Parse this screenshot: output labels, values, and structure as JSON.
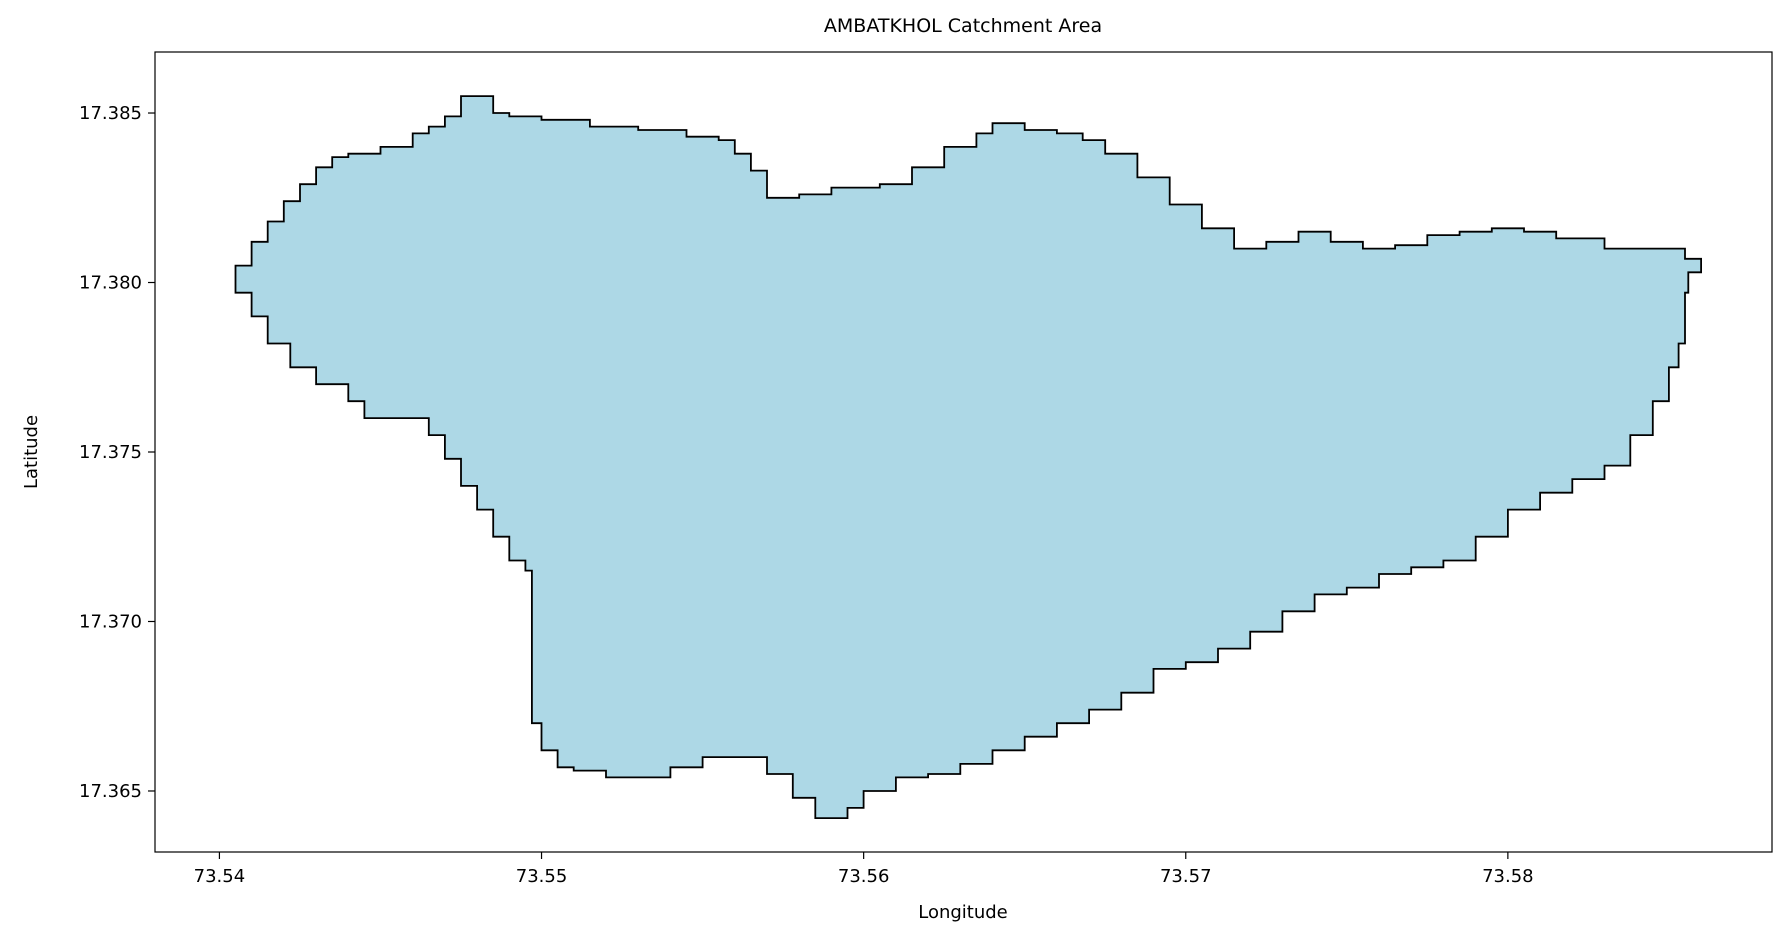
{
  "chart_data": {
    "type": "map",
    "title": "AMBATKHOL Catchment Area",
    "xlabel": "Longitude",
    "ylabel": "Latitude",
    "xlim": [
      73.538,
      73.5882
    ],
    "ylim": [
      17.3632,
      17.3868
    ],
    "xticks": [
      73.54,
      73.55,
      73.56,
      73.57,
      73.58
    ],
    "xtick_labels": [
      "73.54",
      "73.55",
      "73.56",
      "73.57",
      "73.58"
    ],
    "yticks": [
      17.365,
      17.37,
      17.375,
      17.38,
      17.385
    ],
    "ytick_labels": [
      "17.365",
      "17.370",
      "17.375",
      "17.380",
      "17.385"
    ],
    "grid": false,
    "fill_color": "#add8e6",
    "edge_color": "#000000",
    "polygon": [
      [
        73.5405,
        17.3805
      ],
      [
        73.541,
        17.3812
      ],
      [
        73.5415,
        17.3818
      ],
      [
        73.542,
        17.3824
      ],
      [
        73.5425,
        17.3829
      ],
      [
        73.543,
        17.3834
      ],
      [
        73.5435,
        17.3837
      ],
      [
        73.544,
        17.3838
      ],
      [
        73.545,
        17.384
      ],
      [
        73.546,
        17.3844
      ],
      [
        73.5465,
        17.3846
      ],
      [
        73.547,
        17.3849
      ],
      [
        73.5475,
        17.3855
      ],
      [
        73.548,
        17.3855
      ],
      [
        73.5485,
        17.385
      ],
      [
        73.549,
        17.3849
      ],
      [
        73.55,
        17.3848
      ],
      [
        73.5515,
        17.3846
      ],
      [
        73.553,
        17.3845
      ],
      [
        73.5545,
        17.3843
      ],
      [
        73.5555,
        17.3842
      ],
      [
        73.556,
        17.3838
      ],
      [
        73.5565,
        17.3833
      ],
      [
        73.557,
        17.3825
      ],
      [
        73.558,
        17.3826
      ],
      [
        73.559,
        17.3828
      ],
      [
        73.5605,
        17.3829
      ],
      [
        73.5615,
        17.3834
      ],
      [
        73.5625,
        17.384
      ],
      [
        73.5635,
        17.3844
      ],
      [
        73.564,
        17.3847
      ],
      [
        73.565,
        17.3845
      ],
      [
        73.566,
        17.3844
      ],
      [
        73.5668,
        17.3842
      ],
      [
        73.5675,
        17.3838
      ],
      [
        73.5685,
        17.3831
      ],
      [
        73.5695,
        17.3823
      ],
      [
        73.5705,
        17.3816
      ],
      [
        73.5715,
        17.381
      ],
      [
        73.5725,
        17.3812
      ],
      [
        73.5735,
        17.3815
      ],
      [
        73.5745,
        17.3812
      ],
      [
        73.5755,
        17.381
      ],
      [
        73.5765,
        17.3811
      ],
      [
        73.5775,
        17.3814
      ],
      [
        73.5785,
        17.3815
      ],
      [
        73.5795,
        17.3816
      ],
      [
        73.5805,
        17.3815
      ],
      [
        73.5815,
        17.3813
      ],
      [
        73.583,
        17.381
      ],
      [
        73.5845,
        17.381
      ],
      [
        73.5855,
        17.3807
      ],
      [
        73.586,
        17.3803
      ],
      [
        73.5856,
        17.3797
      ],
      [
        73.5855,
        17.3782
      ],
      [
        73.5853,
        17.3775
      ],
      [
        73.585,
        17.3765
      ],
      [
        73.5845,
        17.3755
      ],
      [
        73.5838,
        17.3746
      ],
      [
        73.583,
        17.3742
      ],
      [
        73.582,
        17.3738
      ],
      [
        73.581,
        17.3733
      ],
      [
        73.58,
        17.3725
      ],
      [
        73.579,
        17.3718
      ],
      [
        73.578,
        17.3716
      ],
      [
        73.577,
        17.3714
      ],
      [
        73.576,
        17.371
      ],
      [
        73.575,
        17.3708
      ],
      [
        73.574,
        17.3703
      ],
      [
        73.573,
        17.3697
      ],
      [
        73.572,
        17.3692
      ],
      [
        73.571,
        17.3688
      ],
      [
        73.57,
        17.3686
      ],
      [
        73.569,
        17.3679
      ],
      [
        73.568,
        17.3674
      ],
      [
        73.567,
        17.367
      ],
      [
        73.566,
        17.3666
      ],
      [
        73.565,
        17.3662
      ],
      [
        73.564,
        17.3658
      ],
      [
        73.563,
        17.3655
      ],
      [
        73.562,
        17.3654
      ],
      [
        73.561,
        17.365
      ],
      [
        73.56,
        17.3645
      ],
      [
        73.5595,
        17.3642
      ],
      [
        73.5585,
        17.3648
      ],
      [
        73.5578,
        17.3655
      ],
      [
        73.557,
        17.366
      ],
      [
        73.556,
        17.366
      ],
      [
        73.555,
        17.3657
      ],
      [
        73.554,
        17.3654
      ],
      [
        73.553,
        17.3654
      ],
      [
        73.552,
        17.3656
      ],
      [
        73.551,
        17.3657
      ],
      [
        73.5505,
        17.3662
      ],
      [
        73.55,
        17.367
      ],
      [
        73.5497,
        17.3675
      ],
      [
        73.5497,
        17.3705
      ],
      [
        73.5497,
        17.3715
      ],
      [
        73.5495,
        17.3718
      ],
      [
        73.549,
        17.3725
      ],
      [
        73.5485,
        17.3733
      ],
      [
        73.548,
        17.374
      ],
      [
        73.5475,
        17.3748
      ],
      [
        73.547,
        17.3755
      ],
      [
        73.5465,
        17.376
      ],
      [
        73.5455,
        17.376
      ],
      [
        73.5445,
        17.3765
      ],
      [
        73.544,
        17.377
      ],
      [
        73.543,
        17.3775
      ],
      [
        73.5422,
        17.3782
      ],
      [
        73.5415,
        17.379
      ],
      [
        73.541,
        17.3797
      ],
      [
        73.5405,
        17.38
      ]
    ]
  }
}
